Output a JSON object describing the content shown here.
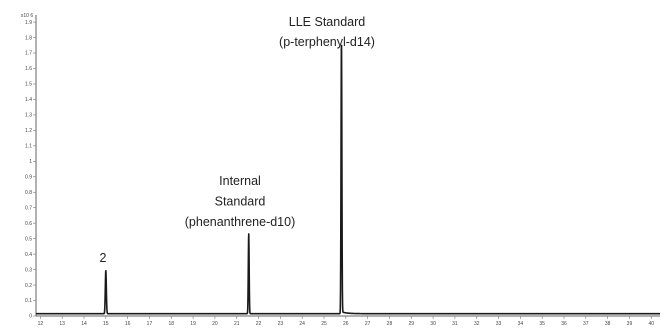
{
  "chart_data": {
    "type": "line",
    "title": "",
    "xlabel": "",
    "ylabel": "",
    "y_scale_label": "x10 6",
    "xlim": [
      11.8,
      40.4
    ],
    "ylim": [
      0,
      1.92
    ],
    "x_ticks": [
      "12",
      "13",
      "14",
      "15",
      "16",
      "17",
      "18",
      "19",
      "20",
      "21",
      "22",
      "23",
      "24",
      "25",
      "26",
      "27",
      "28",
      "29",
      "30",
      "31",
      "32",
      "33",
      "34",
      "35",
      "36",
      "37",
      "38",
      "39",
      "40"
    ],
    "y_ticks": [
      "0",
      "0.1",
      "0.2",
      "0.3",
      "0.4",
      "0.5",
      "0.6",
      "0.7",
      "0.8",
      "0.9",
      "1",
      "1.1",
      "1.2",
      "1.3",
      "1.4",
      "1.5",
      "1.6",
      "1.7",
      "1.8",
      "1.9"
    ],
    "baseline": 0.015,
    "peaks": [
      {
        "label": "2",
        "rt": 15.0,
        "height": 0.28,
        "width": 0.055
      },
      {
        "label": "Internal Standard (phenanthrene-d10)",
        "rt": 21.55,
        "height": 0.52,
        "width": 0.045
      },
      {
        "label": "LLE Standard (p-terphenyl-d14)",
        "rt": 25.8,
        "height": 1.77,
        "width": 0.045
      }
    ],
    "annotations": [
      {
        "id": "peak-2",
        "lines": [
          "2"
        ]
      },
      {
        "id": "internal-standard",
        "lines": [
          "Internal",
          "Standard",
          "(phenanthrene-d10)"
        ]
      },
      {
        "id": "lle-standard",
        "lines": [
          "LLE Standard",
          "(p-terphenyl-d14)"
        ]
      }
    ],
    "colors": {
      "trace": "#1a1a1a",
      "axis": "#666666"
    }
  }
}
